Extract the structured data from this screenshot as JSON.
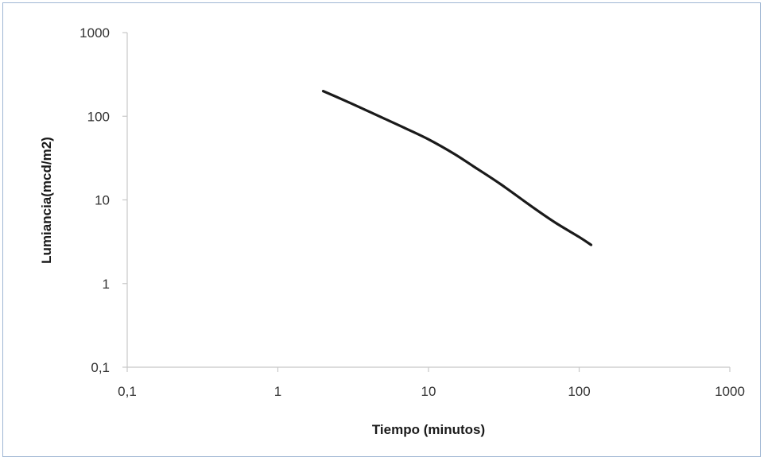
{
  "chart_data": {
    "type": "line",
    "title": "",
    "xlabel": "Tiempo (minutos)",
    "ylabel": "Lumiancia(mcd/m2)",
    "x_scale": "log",
    "y_scale": "log",
    "xlim": [
      0.1,
      1000
    ],
    "ylim": [
      0.1,
      1000
    ],
    "x_ticks": [
      "0,1",
      "1",
      "10",
      "100",
      "1000"
    ],
    "y_ticks": [
      "0,1",
      "1",
      "10",
      "100",
      "1000"
    ],
    "grid": false,
    "legend": "none",
    "series": [
      {
        "color": "#1a1a1a",
        "x": [
          2,
          3,
          5,
          7,
          10,
          15,
          20,
          30,
          50,
          70,
          100,
          120
        ],
        "y": [
          200,
          145,
          95,
          72,
          53,
          35,
          25,
          15.5,
          8,
          5.3,
          3.6,
          2.9
        ]
      }
    ]
  }
}
